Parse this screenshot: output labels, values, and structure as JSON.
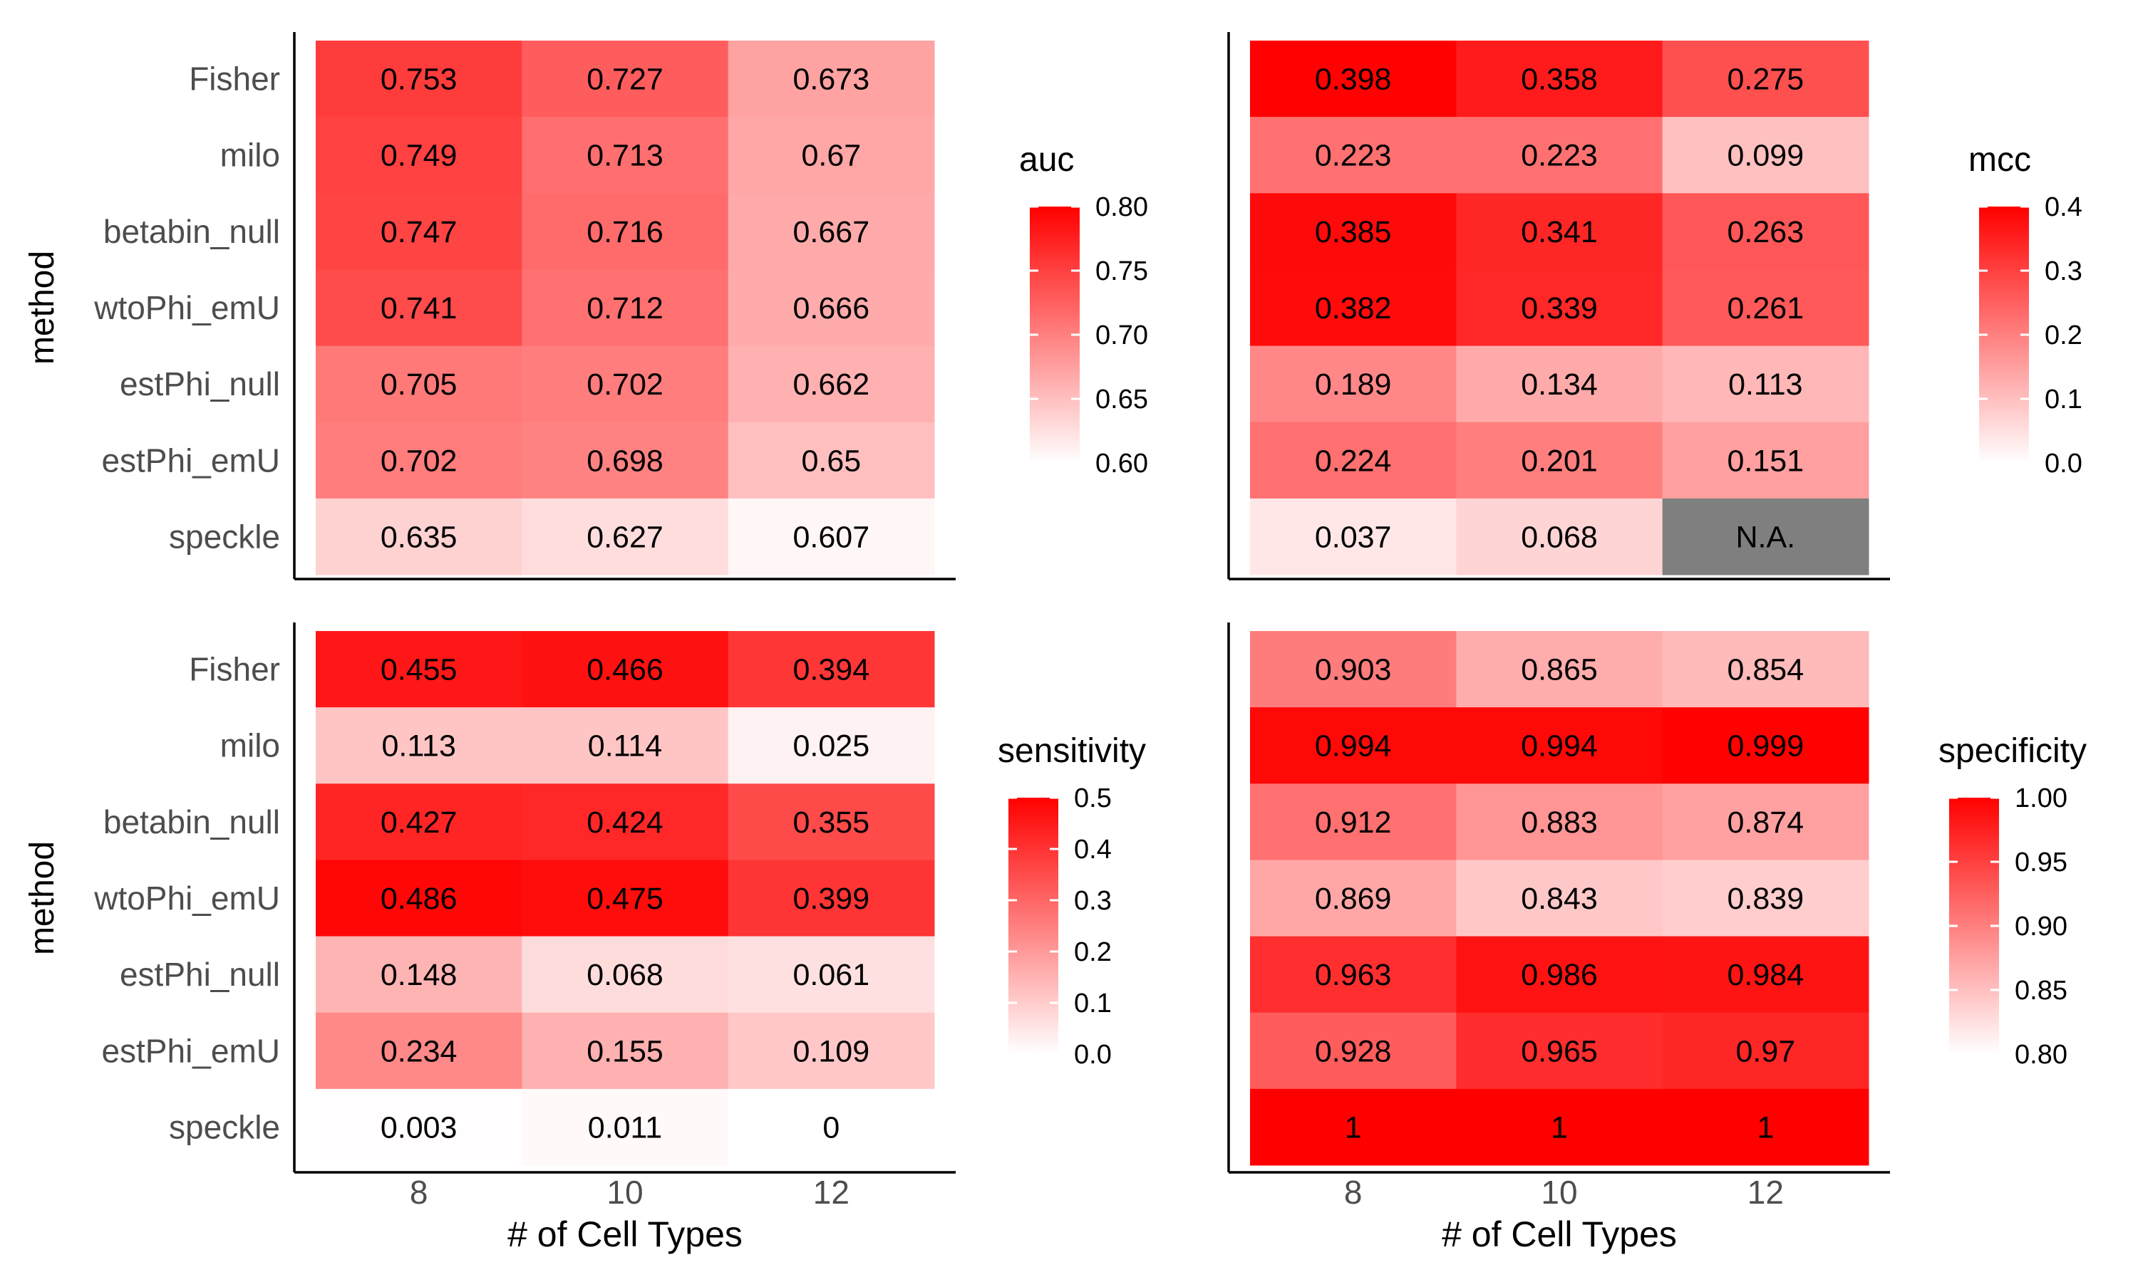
{
  "chart_data": [
    {
      "type": "heatmap",
      "metric": "auc",
      "xlabel": "",
      "ylabel": "method",
      "categories": [
        "8",
        "10",
        "12"
      ],
      "methods": [
        "Fisher",
        "milo",
        "betabin_null",
        "wtoPhi_emU",
        "estPhi_null",
        "estPhi_emU",
        "speckle"
      ],
      "values": [
        [
          0.753,
          0.727,
          0.673
        ],
        [
          0.749,
          0.713,
          0.67
        ],
        [
          0.747,
          0.716,
          0.667
        ],
        [
          0.741,
          0.712,
          0.666
        ],
        [
          0.705,
          0.702,
          0.662
        ],
        [
          0.702,
          0.698,
          0.65
        ],
        [
          0.635,
          0.627,
          0.607
        ]
      ],
      "labels": [
        [
          "0.753",
          "0.727",
          "0.673"
        ],
        [
          "0.749",
          "0.713",
          "0.67"
        ],
        [
          "0.747",
          "0.716",
          "0.667"
        ],
        [
          "0.741",
          "0.712",
          "0.666"
        ],
        [
          "0.705",
          "0.702",
          "0.662"
        ],
        [
          "0.702",
          "0.698",
          "0.65"
        ],
        [
          "0.635",
          "0.627",
          "0.607"
        ]
      ],
      "legend_title": "auc",
      "scale": [
        0.6,
        0.8
      ],
      "legend_ticks": [
        "0.80",
        "0.75",
        "0.70",
        "0.65",
        "0.60"
      ],
      "legend_values": [
        0.8,
        0.75,
        0.7,
        0.65,
        0.6
      ],
      "colors": {
        "low": "#ffffff",
        "high": "#ff0000",
        "na": "#7f7f7f"
      }
    },
    {
      "type": "heatmap",
      "metric": "mcc",
      "xlabel": "",
      "ylabel": "",
      "categories": [
        "8",
        "10",
        "12"
      ],
      "methods": [
        "Fisher",
        "milo",
        "betabin_null",
        "wtoPhi_emU",
        "estPhi_null",
        "estPhi_emU",
        "speckle"
      ],
      "values": [
        [
          0.398,
          0.358,
          0.275
        ],
        [
          0.223,
          0.223,
          0.099
        ],
        [
          0.385,
          0.341,
          0.263
        ],
        [
          0.382,
          0.339,
          0.261
        ],
        [
          0.189,
          0.134,
          0.113
        ],
        [
          0.224,
          0.201,
          0.151
        ],
        [
          0.037,
          0.068,
          null
        ]
      ],
      "labels": [
        [
          "0.398",
          "0.358",
          "0.275"
        ],
        [
          "0.223",
          "0.223",
          "0.099"
        ],
        [
          "0.385",
          "0.341",
          "0.263"
        ],
        [
          "0.382",
          "0.339",
          "0.261"
        ],
        [
          "0.189",
          "0.134",
          "0.113"
        ],
        [
          "0.224",
          "0.201",
          "0.151"
        ],
        [
          "0.037",
          "0.068",
          "N.A."
        ]
      ],
      "legend_title": "mcc",
      "scale": [
        0.0,
        0.4
      ],
      "legend_ticks": [
        "0.4",
        "0.3",
        "0.2",
        "0.1",
        "0.0"
      ],
      "legend_values": [
        0.4,
        0.3,
        0.2,
        0.1,
        0.0
      ],
      "colors": {
        "low": "#ffffff",
        "high": "#ff0000",
        "na": "#7f7f7f"
      }
    },
    {
      "type": "heatmap",
      "metric": "sensitivity",
      "xlabel": "# of Cell Types",
      "ylabel": "method",
      "categories": [
        "8",
        "10",
        "12"
      ],
      "methods": [
        "Fisher",
        "milo",
        "betabin_null",
        "wtoPhi_emU",
        "estPhi_null",
        "estPhi_emU",
        "speckle"
      ],
      "values": [
        [
          0.455,
          0.466,
          0.394
        ],
        [
          0.113,
          0.114,
          0.025
        ],
        [
          0.427,
          0.424,
          0.355
        ],
        [
          0.486,
          0.475,
          0.399
        ],
        [
          0.148,
          0.068,
          0.061
        ],
        [
          0.234,
          0.155,
          0.109
        ],
        [
          0.003,
          0.011,
          0
        ]
      ],
      "labels": [
        [
          "0.455",
          "0.466",
          "0.394"
        ],
        [
          "0.113",
          "0.114",
          "0.025"
        ],
        [
          "0.427",
          "0.424",
          "0.355"
        ],
        [
          "0.486",
          "0.475",
          "0.399"
        ],
        [
          "0.148",
          "0.068",
          "0.061"
        ],
        [
          "0.234",
          "0.155",
          "0.109"
        ],
        [
          "0.003",
          "0.011",
          "0"
        ]
      ],
      "legend_title": "sensitivity",
      "scale": [
        0.0,
        0.5
      ],
      "legend_ticks": [
        "0.5",
        "0.4",
        "0.3",
        "0.2",
        "0.1",
        "0.0"
      ],
      "legend_values": [
        0.5,
        0.4,
        0.3,
        0.2,
        0.1,
        0.0
      ],
      "colors": {
        "low": "#ffffff",
        "high": "#ff0000",
        "na": "#7f7f7f"
      }
    },
    {
      "type": "heatmap",
      "metric": "specificity",
      "xlabel": "# of Cell Types",
      "ylabel": "",
      "categories": [
        "8",
        "10",
        "12"
      ],
      "methods": [
        "Fisher",
        "milo",
        "betabin_null",
        "wtoPhi_emU",
        "estPhi_null",
        "estPhi_emU",
        "speckle"
      ],
      "values": [
        [
          0.903,
          0.865,
          0.854
        ],
        [
          0.994,
          0.994,
          0.999
        ],
        [
          0.912,
          0.883,
          0.874
        ],
        [
          0.869,
          0.843,
          0.839
        ],
        [
          0.963,
          0.986,
          0.984
        ],
        [
          0.928,
          0.965,
          0.97
        ],
        [
          1,
          1,
          1
        ]
      ],
      "labels": [
        [
          "0.903",
          "0.865",
          "0.854"
        ],
        [
          "0.994",
          "0.994",
          "0.999"
        ],
        [
          "0.912",
          "0.883",
          "0.874"
        ],
        [
          "0.869",
          "0.843",
          "0.839"
        ],
        [
          "0.963",
          "0.986",
          "0.984"
        ],
        [
          "0.928",
          "0.965",
          "0.97"
        ],
        [
          "1",
          "1",
          "1"
        ]
      ],
      "legend_title": "specificity",
      "scale": [
        0.8,
        1.0
      ],
      "legend_ticks": [
        "1.00",
        "0.95",
        "0.90",
        "0.85",
        "0.80"
      ],
      "legend_values": [
        1.0,
        0.95,
        0.9,
        0.85,
        0.8
      ],
      "colors": {
        "low": "#ffffff",
        "high": "#ff0000",
        "na": "#7f7f7f"
      }
    }
  ]
}
